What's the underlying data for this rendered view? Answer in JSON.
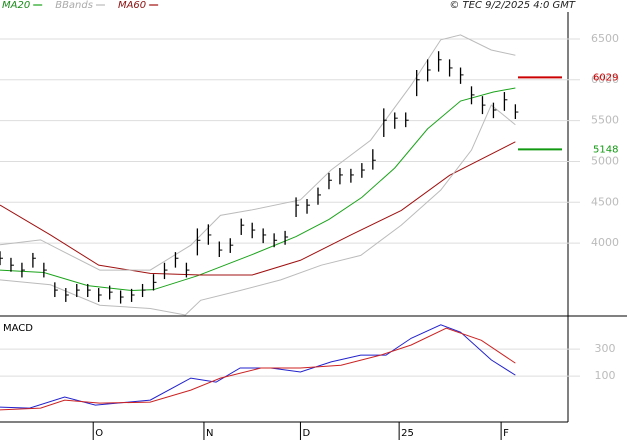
{
  "header": {
    "legend": [
      {
        "name": "MA20",
        "color": "#1aa31a"
      },
      {
        "name": "BBands",
        "color": "#bbbbbb"
      },
      {
        "name": "MA60",
        "color": "#a01010"
      }
    ],
    "source": "© TEC 9/2/2025 4:0 GMT"
  },
  "chart_data": [
    {
      "type": "hlc",
      "ylim": [
        3120,
        6830
      ],
      "xlim": [
        0,
        51.8
      ],
      "yticks": [
        4000,
        4500,
        5000,
        5500,
        6000,
        6500
      ],
      "grid": true,
      "high": [
        3900,
        3820,
        3760,
        3880,
        3760,
        3520,
        3450,
        3500,
        3500,
        3450,
        3480,
        3420,
        3440,
        3500,
        3620,
        3760,
        3890,
        3760,
        4180,
        4230,
        4020,
        4060,
        4300,
        4250,
        4180,
        4120,
        4150,
        4560,
        4540,
        4680,
        4860,
        4920,
        4910,
        4980,
        5150,
        5650,
        5600,
        5600,
        6120,
        6250,
        6350,
        6250,
        6150,
        5920,
        5800,
        5720,
        5850,
        5700
      ],
      "low": [
        3730,
        3650,
        3580,
        3700,
        3580,
        3340,
        3280,
        3340,
        3340,
        3280,
        3310,
        3260,
        3280,
        3340,
        3420,
        3560,
        3700,
        3580,
        3850,
        3980,
        3830,
        3880,
        4100,
        4060,
        4000,
        3950,
        3980,
        4320,
        4360,
        4470,
        4660,
        4720,
        4740,
        4800,
        4900,
        5300,
        5400,
        5420,
        5800,
        5980,
        6100,
        6040,
        5950,
        5700,
        5580,
        5530,
        5620,
        5520
      ],
      "close": [
        3815,
        3730,
        3670,
        3815,
        3670,
        3425,
        3365,
        3425,
        3425,
        3365,
        3400,
        3340,
        3365,
        3425,
        3520,
        3670,
        3815,
        3670,
        4035,
        4100,
        3915,
        3975,
        4220,
        4160,
        4100,
        4035,
        4075,
        4465,
        4465,
        4590,
        4770,
        4835,
        4835,
        4895,
        5015,
        5505,
        5530,
        5505,
        6000,
        6120,
        6245,
        6145,
        6060,
        5815,
        5690,
        5630,
        5755,
        5605
      ],
      "color": "#000000",
      "series": [
        {
          "name": "MA20",
          "color": "#1aa31a",
          "x": [
            0,
            4,
            8,
            12,
            14,
            18,
            23,
            27,
            30,
            33,
            36,
            39,
            42,
            45,
            47
          ],
          "values": [
            3670,
            3640,
            3480,
            3420,
            3430,
            3600,
            3860,
            4080,
            4290,
            4560,
            4920,
            5400,
            5740,
            5850,
            5900
          ]
        },
        {
          "name": "MA60",
          "color": "#a01010",
          "x": [
            0,
            4.6,
            9,
            13.7,
            18.3,
            23,
            27.4,
            32,
            36.6,
            41,
            47
          ],
          "values": [
            4466,
            4100,
            3730,
            3630,
            3610,
            3610,
            3790,
            4100,
            4400,
            4830,
            5240
          ]
        },
        {
          "name": "BBands",
          "color": "#bbbbbb",
          "x": [
            0,
            3.7,
            5.5,
            9.1,
            13.7,
            17.4,
            20.1,
            22.9,
            27.4,
            30.2,
            33.8,
            37.5,
            40.2,
            42,
            44.8,
            47
          ],
          "values": [
            3980,
            4040,
            3915,
            3670,
            3670,
            3975,
            4340,
            4405,
            4530,
            4895,
            5260,
            5935,
            6490,
            6550,
            6365,
            6300
          ]
        },
        {
          "name": "BBands",
          "color": "#bbbbbb",
          "x": [
            0,
            4.6,
            9.1,
            13.7,
            16.9,
            18.3,
            21.9,
            25.6,
            29.3,
            32.9,
            36.6,
            40.2,
            43,
            44.8,
            47
          ],
          "values": [
            3550,
            3490,
            3240,
            3200,
            3120,
            3300,
            3420,
            3550,
            3730,
            3850,
            4220,
            4650,
            5140,
            5690,
            5450
          ]
        }
      ],
      "levels": [
        {
          "value": 6029,
          "color": "#cc0000"
        },
        {
          "value": 5148,
          "color": "#119911"
        }
      ]
    },
    {
      "type": "line",
      "title": "MACD",
      "ylim": [
        -240,
        530
      ],
      "xlim": [
        0,
        51.8
      ],
      "yticks": [
        100,
        300
      ],
      "grid": true,
      "xticks": [
        {
          "value": 8.5,
          "label": "O"
        },
        {
          "value": 18.6,
          "label": "N"
        },
        {
          "value": 27.4,
          "label": "D"
        },
        {
          "value": 36.4,
          "label": "25"
        },
        {
          "value": 45.7,
          "label": "F"
        }
      ],
      "series": [
        {
          "color": "#2222cc",
          "x": [
            0,
            2.7,
            5.9,
            8.7,
            13.7,
            17.4,
            19.7,
            21.9,
            24.7,
            27.4,
            30.2,
            32.9,
            35.2,
            37.5,
            40.2,
            42,
            44.8,
            47
          ],
          "values": [
            -130,
            -137,
            -55,
            -115,
            -78,
            85,
            55,
            160,
            160,
            130,
            205,
            255,
            255,
            380,
            480,
            425,
            220,
            107
          ]
        },
        {
          "color": "#cc2222",
          "x": [
            0,
            3.7,
            5.9,
            9.1,
            13.7,
            17.4,
            20.1,
            23.8,
            27.4,
            31.1,
            34.7,
            37.5,
            40.7,
            43.9,
            47
          ],
          "values": [
            -150,
            -137,
            -78,
            -100,
            -93,
            -4,
            85,
            160,
            160,
            180,
            255,
            330,
            455,
            365,
            196
          ]
        }
      ]
    }
  ]
}
